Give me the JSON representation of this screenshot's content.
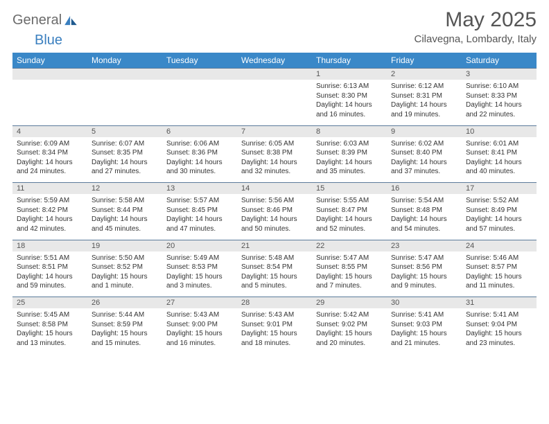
{
  "logo": {
    "part1": "General",
    "part2": "Blue"
  },
  "title": "May 2025",
  "location": "Cilavegna, Lombardy, Italy",
  "colors": {
    "header_bg": "#3a88c8",
    "header_fg": "#ffffff",
    "daynum_bg": "#e8e8e8",
    "rule": "#5a7a9a",
    "logo_gray": "#6b6b6b",
    "logo_blue": "#3a7fbf"
  },
  "weekdays": [
    "Sunday",
    "Monday",
    "Tuesday",
    "Wednesday",
    "Thursday",
    "Friday",
    "Saturday"
  ],
  "weeks": [
    {
      "nums": [
        "",
        "",
        "",
        "",
        "1",
        "2",
        "3"
      ],
      "data": [
        null,
        null,
        null,
        null,
        {
          "sr": "6:13 AM",
          "ss": "8:30 PM",
          "dl": "14 hours and 16 minutes."
        },
        {
          "sr": "6:12 AM",
          "ss": "8:31 PM",
          "dl": "14 hours and 19 minutes."
        },
        {
          "sr": "6:10 AM",
          "ss": "8:33 PM",
          "dl": "14 hours and 22 minutes."
        }
      ]
    },
    {
      "nums": [
        "4",
        "5",
        "6",
        "7",
        "8",
        "9",
        "10"
      ],
      "data": [
        {
          "sr": "6:09 AM",
          "ss": "8:34 PM",
          "dl": "14 hours and 24 minutes."
        },
        {
          "sr": "6:07 AM",
          "ss": "8:35 PM",
          "dl": "14 hours and 27 minutes."
        },
        {
          "sr": "6:06 AM",
          "ss": "8:36 PM",
          "dl": "14 hours and 30 minutes."
        },
        {
          "sr": "6:05 AM",
          "ss": "8:38 PM",
          "dl": "14 hours and 32 minutes."
        },
        {
          "sr": "6:03 AM",
          "ss": "8:39 PM",
          "dl": "14 hours and 35 minutes."
        },
        {
          "sr": "6:02 AM",
          "ss": "8:40 PM",
          "dl": "14 hours and 37 minutes."
        },
        {
          "sr": "6:01 AM",
          "ss": "8:41 PM",
          "dl": "14 hours and 40 minutes."
        }
      ]
    },
    {
      "nums": [
        "11",
        "12",
        "13",
        "14",
        "15",
        "16",
        "17"
      ],
      "data": [
        {
          "sr": "5:59 AM",
          "ss": "8:42 PM",
          "dl": "14 hours and 42 minutes."
        },
        {
          "sr": "5:58 AM",
          "ss": "8:44 PM",
          "dl": "14 hours and 45 minutes."
        },
        {
          "sr": "5:57 AM",
          "ss": "8:45 PM",
          "dl": "14 hours and 47 minutes."
        },
        {
          "sr": "5:56 AM",
          "ss": "8:46 PM",
          "dl": "14 hours and 50 minutes."
        },
        {
          "sr": "5:55 AM",
          "ss": "8:47 PM",
          "dl": "14 hours and 52 minutes."
        },
        {
          "sr": "5:54 AM",
          "ss": "8:48 PM",
          "dl": "14 hours and 54 minutes."
        },
        {
          "sr": "5:52 AM",
          "ss": "8:49 PM",
          "dl": "14 hours and 57 minutes."
        }
      ]
    },
    {
      "nums": [
        "18",
        "19",
        "20",
        "21",
        "22",
        "23",
        "24"
      ],
      "data": [
        {
          "sr": "5:51 AM",
          "ss": "8:51 PM",
          "dl": "14 hours and 59 minutes."
        },
        {
          "sr": "5:50 AM",
          "ss": "8:52 PM",
          "dl": "15 hours and 1 minute."
        },
        {
          "sr": "5:49 AM",
          "ss": "8:53 PM",
          "dl": "15 hours and 3 minutes."
        },
        {
          "sr": "5:48 AM",
          "ss": "8:54 PM",
          "dl": "15 hours and 5 minutes."
        },
        {
          "sr": "5:47 AM",
          "ss": "8:55 PM",
          "dl": "15 hours and 7 minutes."
        },
        {
          "sr": "5:47 AM",
          "ss": "8:56 PM",
          "dl": "15 hours and 9 minutes."
        },
        {
          "sr": "5:46 AM",
          "ss": "8:57 PM",
          "dl": "15 hours and 11 minutes."
        }
      ]
    },
    {
      "nums": [
        "25",
        "26",
        "27",
        "28",
        "29",
        "30",
        "31"
      ],
      "data": [
        {
          "sr": "5:45 AM",
          "ss": "8:58 PM",
          "dl": "15 hours and 13 minutes."
        },
        {
          "sr": "5:44 AM",
          "ss": "8:59 PM",
          "dl": "15 hours and 15 minutes."
        },
        {
          "sr": "5:43 AM",
          "ss": "9:00 PM",
          "dl": "15 hours and 16 minutes."
        },
        {
          "sr": "5:43 AM",
          "ss": "9:01 PM",
          "dl": "15 hours and 18 minutes."
        },
        {
          "sr": "5:42 AM",
          "ss": "9:02 PM",
          "dl": "15 hours and 20 minutes."
        },
        {
          "sr": "5:41 AM",
          "ss": "9:03 PM",
          "dl": "15 hours and 21 minutes."
        },
        {
          "sr": "5:41 AM",
          "ss": "9:04 PM",
          "dl": "15 hours and 23 minutes."
        }
      ]
    }
  ],
  "labels": {
    "sunrise": "Sunrise: ",
    "sunset": "Sunset: ",
    "daylight": "Daylight: "
  }
}
